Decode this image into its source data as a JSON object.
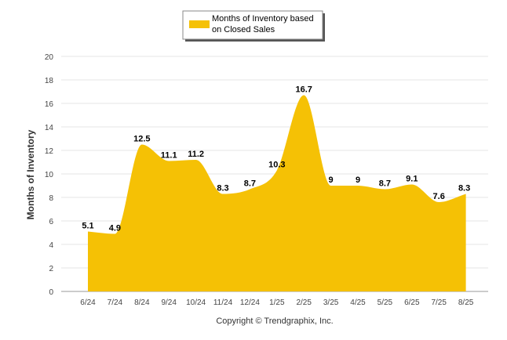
{
  "chart_data": {
    "type": "area",
    "categories": [
      "6/24",
      "7/24",
      "8/24",
      "9/24",
      "10/24",
      "11/24",
      "12/24",
      "1/25",
      "2/25",
      "3/25",
      "4/25",
      "5/25",
      "6/25",
      "7/25",
      "8/25"
    ],
    "series": [
      {
        "name": "Months of Inventory based on Closed Sales",
        "values": [
          5.1,
          4.9,
          12.5,
          11.1,
          11.2,
          8.3,
          8.7,
          10.3,
          16.7,
          9,
          9,
          8.7,
          9.1,
          7.6,
          8.3
        ],
        "color": "#F5C105"
      }
    ],
    "legend_lines": [
      "Months of Inventory based",
      "on Closed Sales"
    ],
    "ylabel": "Months of Inventory",
    "ylim": [
      0,
      20
    ],
    "yticks": [
      "0",
      "2",
      "4",
      "6",
      "8",
      "10",
      "12",
      "14",
      "16",
      "18",
      "20"
    ],
    "grid": true,
    "legend_position": "top-center",
    "credit": "Copyright © Trendgraphix, Inc."
  }
}
